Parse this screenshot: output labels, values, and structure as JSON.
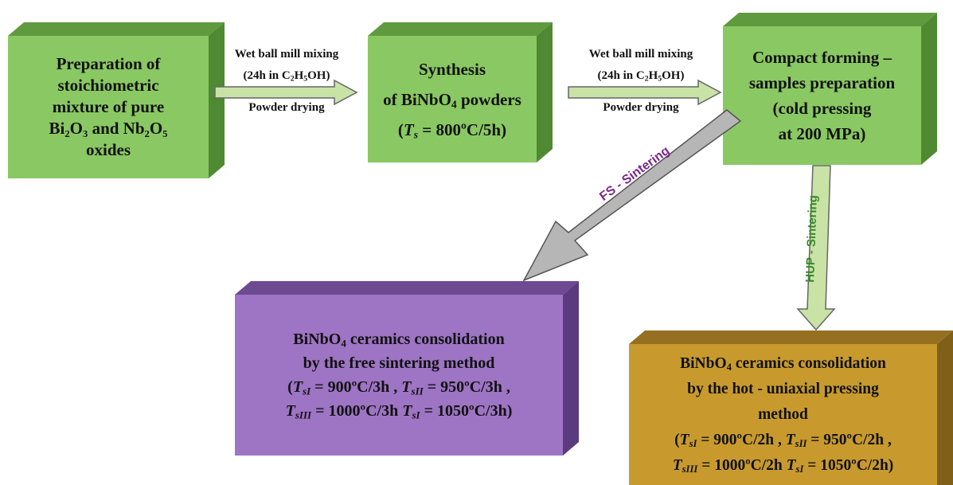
{
  "boxes": {
    "prep": {
      "color": "#8ac863",
      "lines": [
        "Preparation of",
        "stoichiometric",
        "mixture of  pure",
        "Bi₂O₃ and Nb₂O₅",
        "oxides"
      ]
    },
    "synthesis": {
      "color": "#8ac863",
      "line1": "Synthesis",
      "line2_pre": "of  BiNbO",
      "line2_sub": "4",
      "line2_post": " powders",
      "line3_pre": "(",
      "line3_var": "T",
      "line3_sub": "s",
      "line3_post": " = 800ºC/5h)"
    },
    "compact": {
      "color": "#8ac863",
      "lines": [
        "Compact forming –",
        "samples preparation",
        "(cold pressing",
        "at 200 MPa)"
      ]
    },
    "free_sintering": {
      "color": "#9e74c4",
      "line1_pre": "BiNbO",
      "line1_sub": "4",
      "line1_post": " ceramics consolidation",
      "line2": "by the free sintering method",
      "t1_sub": "sI",
      "t1_val": " = 900ºC/3h , ",
      "t2_sub": "sII",
      "t2_val": " = 950ºC/3h ,",
      "t3_sub": "sIII",
      "t3_val": " = 1000ºC/3h ",
      "t4_sub": "sI",
      "t4_val": " = 1050ºC/3h)"
    },
    "hot_pressing": {
      "color": "#c89a2e",
      "line1_pre": "BiNbO",
      "line1_sub": "4",
      "line1_post": " ceramics consolidation",
      "line2": "by the hot - uniaxial pressing",
      "line3": "method",
      "t1_sub": "sI",
      "t1_val": " = 900ºC/2h , ",
      "t2_sub": "sII",
      "t2_val": " = 950ºC/2h ,",
      "t3_sub": "sIII",
      "t3_val": " = 1000ºC/2h ",
      "t4_sub": "sI",
      "t4_val": " = 1050ºC/2h)"
    }
  },
  "arrows": {
    "a1": {
      "top": "Wet ball mill mixing",
      "mid_pre": "(24h in C",
      "mid_sub1": "2",
      "mid_mid": "H",
      "mid_sub2": "5",
      "mid_post": "OH)",
      "bottom": "Powder drying"
    },
    "a2": {
      "top": "Wet ball mill mixing",
      "mid_pre": "(24h in C",
      "mid_sub1": "2",
      "mid_mid": "H",
      "mid_sub2": "5",
      "mid_post": "OH)",
      "bottom": "Powder drying"
    },
    "fs_label": "FS - Sintering",
    "hup_label": "HUP - Sintering",
    "fs_label_color": "#7a2a8c",
    "hup_label_color": "#3a8a2a"
  }
}
